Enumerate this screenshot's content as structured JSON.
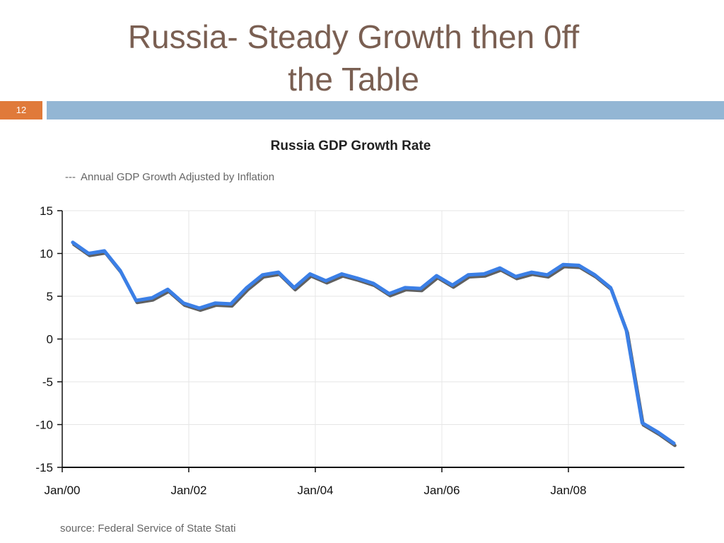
{
  "slide": {
    "title_line1": "Russia- Steady Growth then 0ff",
    "title_line2": "the Table",
    "page_number": "12",
    "colors": {
      "title": "#7a5f52",
      "page_box": "#e07a3a",
      "header_bar": "#93b6d4"
    }
  },
  "chart_data": {
    "type": "line",
    "title": "Russia GDP Growth Rate",
    "legend": [
      "Annual GDP Growth Adjusted by Inflation"
    ],
    "legend_marker": "---",
    "legend_placement": "top-left",
    "source": "source: Federal Service of State Stati",
    "xlabel": "",
    "ylabel": "",
    "ylim": [
      -15,
      15
    ],
    "yticks": [
      15,
      10,
      5,
      0,
      -5,
      -10,
      -15
    ],
    "x_ticks": [
      "Jan/00",
      "Jan/02",
      "Jan/04",
      "Jan/06",
      "Jan/08"
    ],
    "x_tick_dates": [
      "2000-01",
      "2002-01",
      "2004-01",
      "2006-01",
      "2008-01"
    ],
    "x_range": [
      "2000-01",
      "2009-11"
    ],
    "grid": true,
    "series": [
      {
        "name": "Annual GDP Growth Adjusted by Inflation",
        "color": "#3b7fe6",
        "shadow_color": "#444444",
        "x": [
          "2000-03",
          "2000-06",
          "2000-09",
          "2000-12",
          "2001-03",
          "2001-06",
          "2001-09",
          "2001-12",
          "2002-03",
          "2002-06",
          "2002-09",
          "2002-12",
          "2003-03",
          "2003-06",
          "2003-09",
          "2003-12",
          "2004-03",
          "2004-06",
          "2004-09",
          "2004-12",
          "2005-03",
          "2005-06",
          "2005-09",
          "2005-12",
          "2006-03",
          "2006-06",
          "2006-09",
          "2006-12",
          "2007-03",
          "2007-06",
          "2007-09",
          "2007-12",
          "2008-03",
          "2008-06",
          "2008-09",
          "2008-12",
          "2009-03",
          "2009-06",
          "2009-09"
        ],
        "y": [
          11.3,
          10.0,
          10.3,
          8.0,
          4.5,
          4.8,
          5.8,
          4.2,
          3.6,
          4.2,
          4.1,
          6.0,
          7.5,
          7.8,
          6.0,
          7.6,
          6.8,
          7.6,
          7.1,
          6.5,
          5.3,
          6.0,
          5.9,
          7.4,
          6.3,
          7.5,
          7.6,
          8.3,
          7.3,
          7.8,
          7.5,
          8.7,
          8.6,
          7.5,
          6.0,
          1.0,
          -9.8,
          -10.9,
          -12.2
        ]
      }
    ]
  }
}
